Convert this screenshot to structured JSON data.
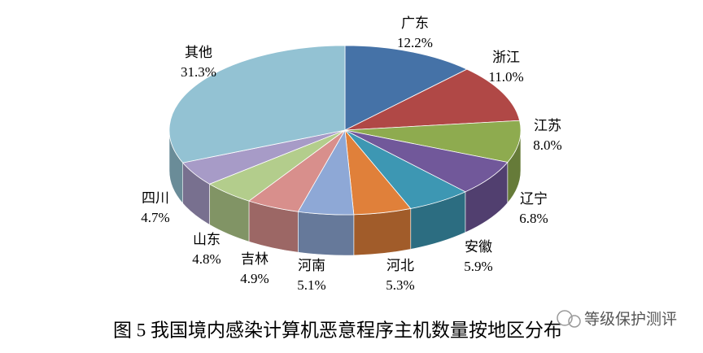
{
  "chart_data": {
    "type": "pie3d",
    "caption": "图 5 我国境内感染计算机恶意程序主机数量按地区分布",
    "watermark": "等级保护测评",
    "categories": [
      "广东",
      "浙江",
      "江苏",
      "辽宁",
      "安徽",
      "河北",
      "河南",
      "吉林",
      "山东",
      "四川",
      "其他"
    ],
    "values": [
      12.2,
      11.0,
      8.0,
      6.8,
      5.9,
      5.3,
      5.1,
      4.9,
      4.8,
      4.7,
      31.3
    ],
    "value_labels": [
      "12.2%",
      "11.0%",
      "8.0%",
      "6.8%",
      "5.9%",
      "5.3%",
      "5.1%",
      "4.9%",
      "4.8%",
      "4.7%",
      "31.3%"
    ],
    "colors": [
      "#4572a7",
      "#b04846",
      "#8eab4f",
      "#71589a",
      "#3d97b3",
      "#e0803a",
      "#8ea8d6",
      "#d88f8c",
      "#b3cd8c",
      "#a79bc7",
      "#93c2d3"
    ]
  }
}
